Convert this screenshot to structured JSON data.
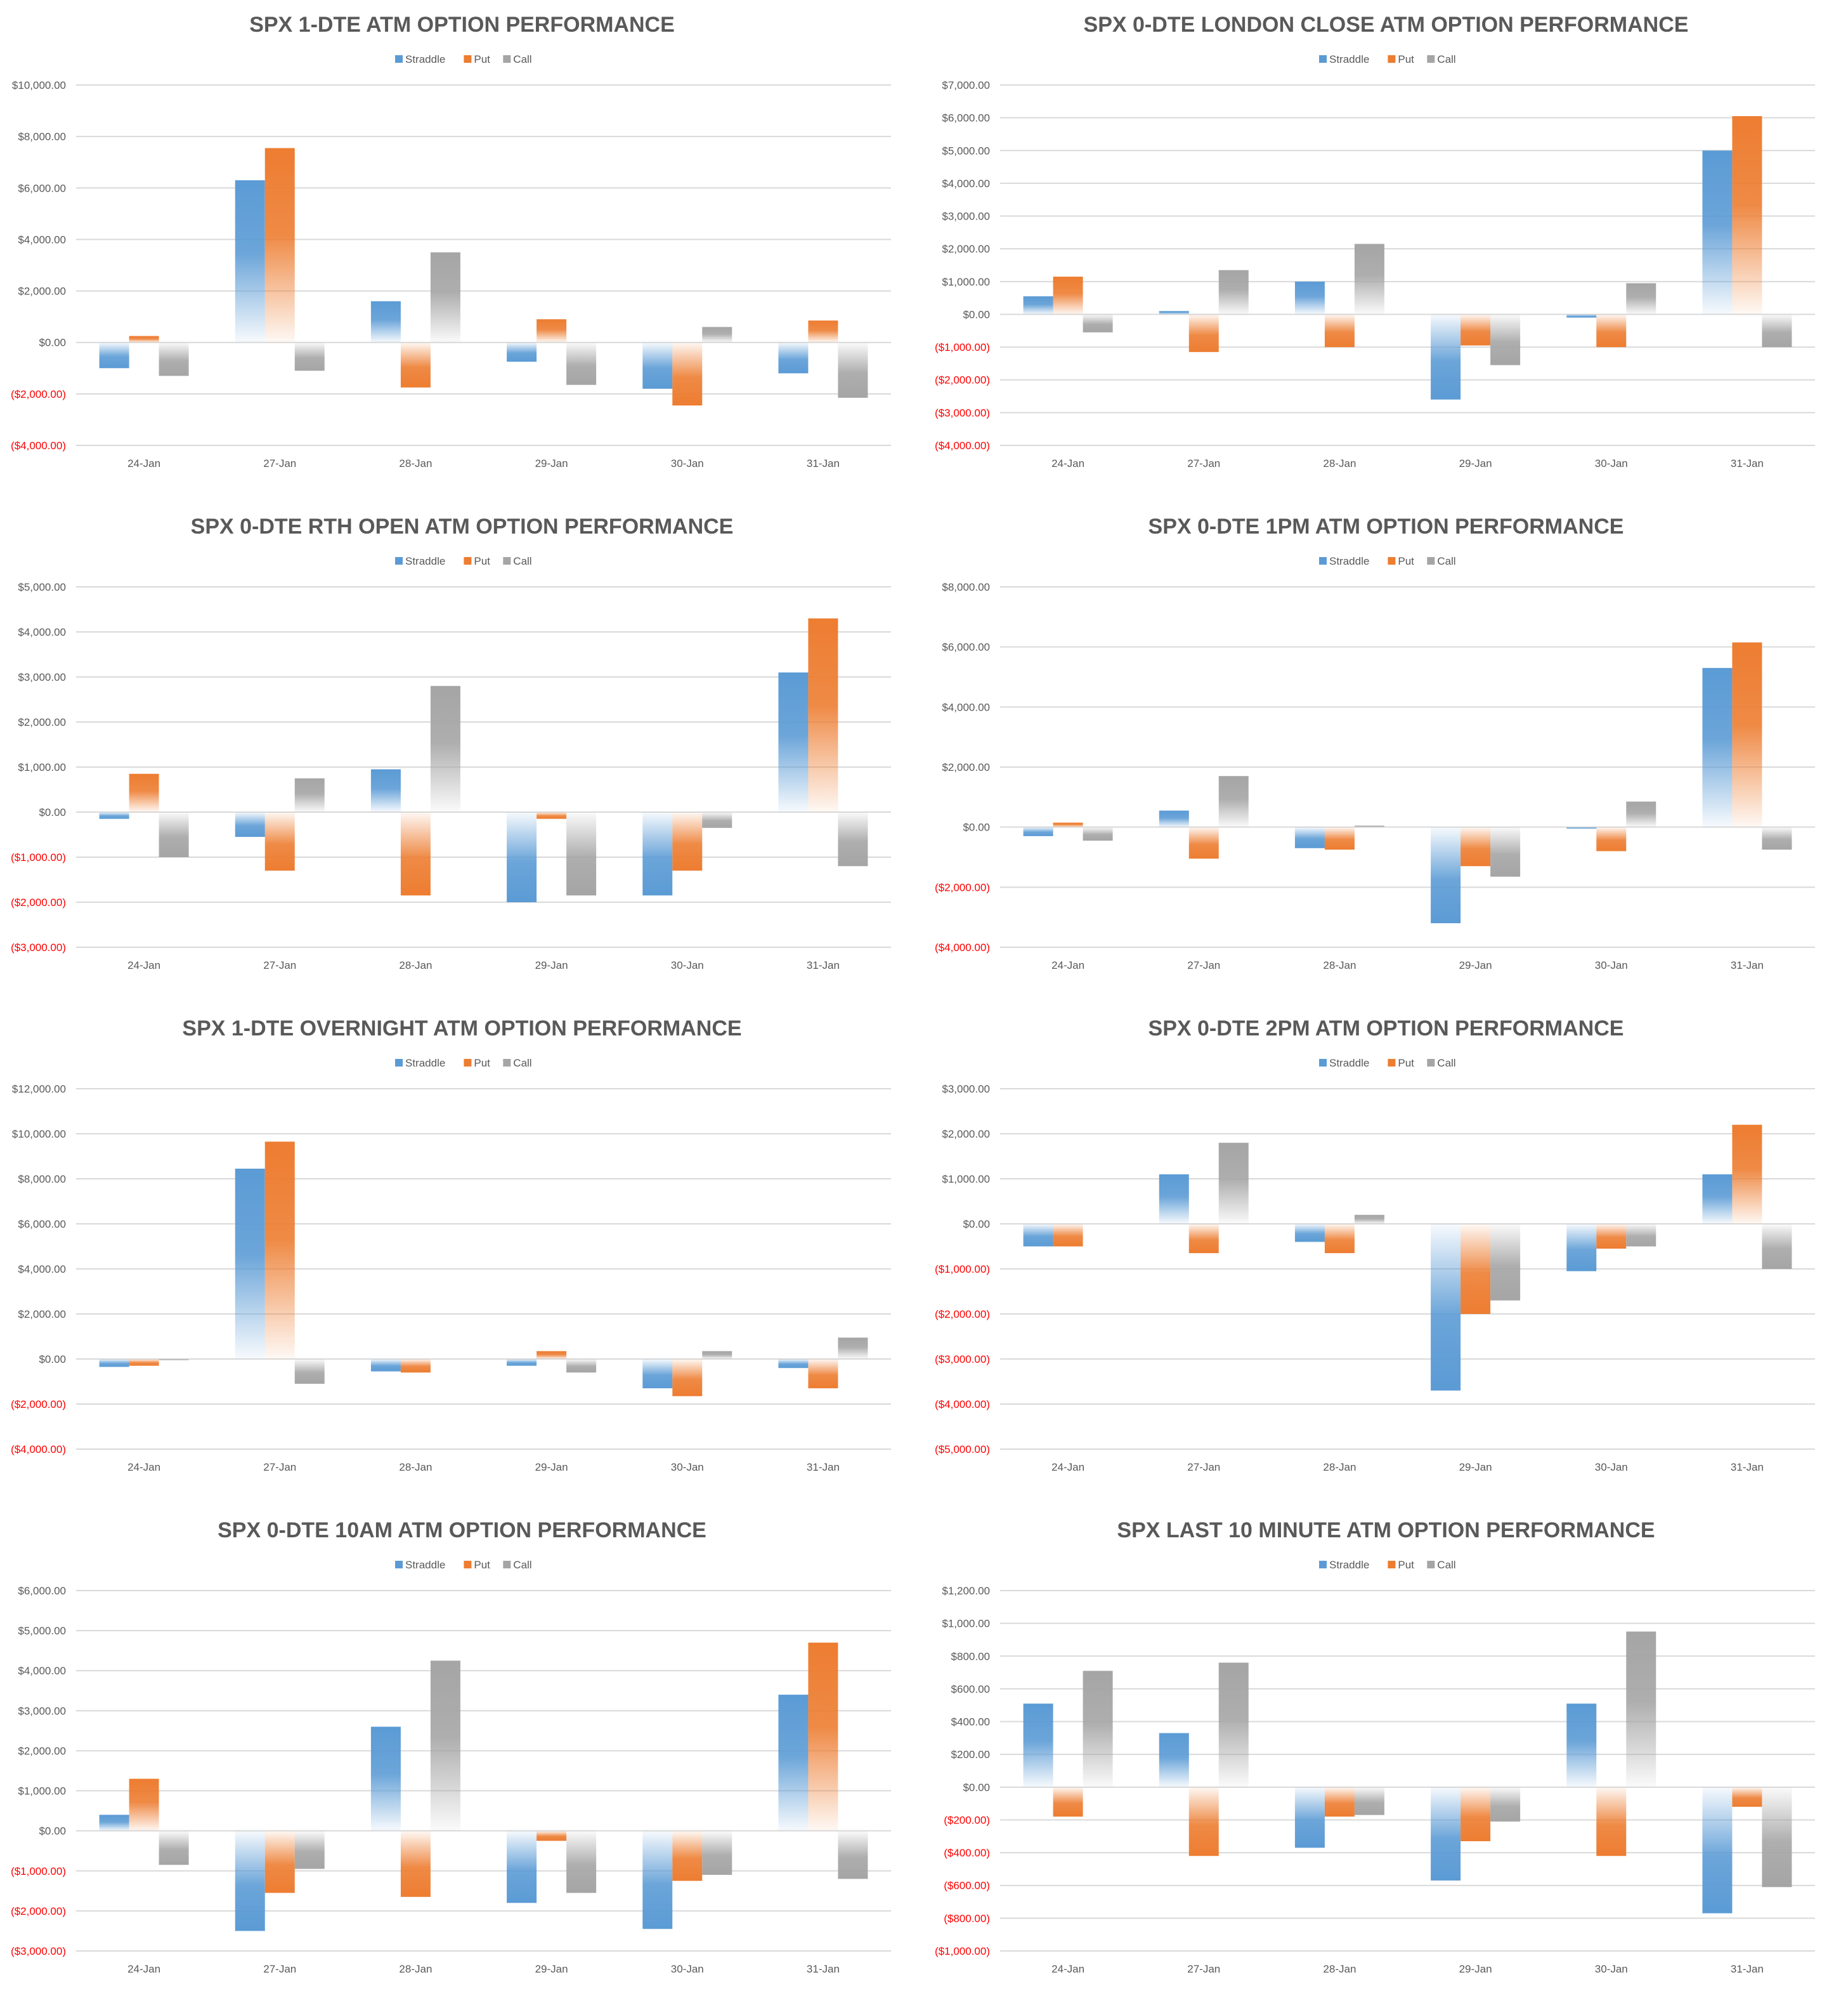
{
  "colors": {
    "straddle": "#5b9bd5",
    "put": "#ed7d31",
    "call": "#a5a5a5",
    "grid": "#d9d9d9",
    "negative_tick": "#ff0000",
    "text": "#595959"
  },
  "chart_data": [
    {
      "type": "bar",
      "title": "SPX 1-DTE ATM OPTION PERFORMANCE",
      "categories": [
        "24-Jan",
        "27-Jan",
        "28-Jan",
        "29-Jan",
        "30-Jan",
        "31-Jan"
      ],
      "ylim": [
        -4000,
        10000
      ],
      "yticks": [
        10000,
        8000,
        6000,
        4000,
        2000,
        0,
        -2000,
        -4000
      ],
      "ytick_labels": [
        "$10,000.00",
        "$8,000.00",
        "$6,000.00",
        "$4,000.00",
        "$2,000.00",
        "$0.00",
        "($2,000.00)",
        "($4,000.00)"
      ],
      "legend": "top-center",
      "series": [
        {
          "name": "Straddle",
          "values": [
            -1000,
            6300,
            1600,
            -750,
            -1800,
            -1200
          ]
        },
        {
          "name": "Put",
          "values": [
            250,
            7550,
            -1750,
            900,
            -2450,
            850
          ]
        },
        {
          "name": "Call",
          "values": [
            -1300,
            -1100,
            3500,
            -1650,
            600,
            -2150
          ]
        }
      ]
    },
    {
      "type": "bar",
      "title": "SPX 0-DTE  LONDON CLOSE ATM OPTION PERFORMANCE",
      "categories": [
        "24-Jan",
        "27-Jan",
        "28-Jan",
        "29-Jan",
        "30-Jan",
        "31-Jan"
      ],
      "ylim": [
        -4000,
        7000
      ],
      "yticks": [
        7000,
        6000,
        5000,
        4000,
        3000,
        2000,
        1000,
        0,
        -1000,
        -2000,
        -3000,
        -4000
      ],
      "ytick_labels": [
        "$7,000.00",
        "$6,000.00",
        "$5,000.00",
        "$4,000.00",
        "$3,000.00",
        "$2,000.00",
        "$1,000.00",
        "$0.00",
        "($1,000.00)",
        "($2,000.00)",
        "($3,000.00)",
        "($4,000.00)"
      ],
      "legend": "top-center",
      "series": [
        {
          "name": "Straddle",
          "values": [
            550,
            100,
            1000,
            -2600,
            -100,
            5000
          ]
        },
        {
          "name": "Put",
          "values": [
            1150,
            -1150,
            -1000,
            -950,
            -1000,
            6050
          ]
        },
        {
          "name": "Call",
          "values": [
            -550,
            1350,
            2150,
            -1550,
            950,
            -1000
          ]
        }
      ]
    },
    {
      "type": "bar",
      "title": "SPX 0-DTE RTH OPEN ATM OPTION PERFORMANCE",
      "categories": [
        "24-Jan",
        "27-Jan",
        "28-Jan",
        "29-Jan",
        "30-Jan",
        "31-Jan"
      ],
      "ylim": [
        -3000,
        5000
      ],
      "yticks": [
        5000,
        4000,
        3000,
        2000,
        1000,
        0,
        -1000,
        -2000,
        -3000
      ],
      "ytick_labels": [
        "$5,000.00",
        "$4,000.00",
        "$3,000.00",
        "$2,000.00",
        "$1,000.00",
        "$0.00",
        "($1,000.00)",
        "($2,000.00)",
        "($3,000.00)"
      ],
      "legend": "top-center",
      "series": [
        {
          "name": "Straddle",
          "values": [
            -150,
            -550,
            950,
            -2000,
            -1850,
            3100
          ]
        },
        {
          "name": "Put",
          "values": [
            850,
            -1300,
            -1850,
            -150,
            -1300,
            4300
          ]
        },
        {
          "name": "Call",
          "values": [
            -1000,
            750,
            2800,
            -1850,
            -350,
            -1200
          ]
        }
      ]
    },
    {
      "type": "bar",
      "title": "SPX 0-DTE 1PM ATM OPTION PERFORMANCE",
      "categories": [
        "24-Jan",
        "27-Jan",
        "28-Jan",
        "29-Jan",
        "30-Jan",
        "31-Jan"
      ],
      "ylim": [
        -4000,
        8000
      ],
      "yticks": [
        8000,
        6000,
        4000,
        2000,
        0,
        -2000,
        -4000
      ],
      "ytick_labels": [
        "$8,000.00",
        "$6,000.00",
        "$4,000.00",
        "$2,000.00",
        "$0.00",
        "($2,000.00)",
        "($4,000.00)"
      ],
      "legend": "top-center",
      "series": [
        {
          "name": "Straddle",
          "values": [
            -300,
            550,
            -700,
            -3200,
            -50,
            5300
          ]
        },
        {
          "name": "Put",
          "values": [
            150,
            -1050,
            -750,
            -1300,
            -800,
            6150
          ]
        },
        {
          "name": "Call",
          "values": [
            -450,
            1700,
            50,
            -1650,
            850,
            -750
          ]
        }
      ]
    },
    {
      "type": "bar",
      "title": "SPX 1-DTE OVERNIGHT ATM OPTION PERFORMANCE",
      "categories": [
        "24-Jan",
        "27-Jan",
        "28-Jan",
        "29-Jan",
        "30-Jan",
        "31-Jan"
      ],
      "ylim": [
        -4000,
        12000
      ],
      "yticks": [
        12000,
        10000,
        8000,
        6000,
        4000,
        2000,
        0,
        -2000,
        -4000
      ],
      "ytick_labels": [
        "$12,000.00",
        "$10,000.00",
        "$8,000.00",
        "$6,000.00",
        "$4,000.00",
        "$2,000.00",
        "$0.00",
        "($2,000.00)",
        "($4,000.00)"
      ],
      "legend": "top-center",
      "series": [
        {
          "name": "Straddle",
          "values": [
            -350,
            8450,
            -550,
            -300,
            -1300,
            -400
          ]
        },
        {
          "name": "Put",
          "values": [
            -300,
            9650,
            -600,
            350,
            -1650,
            -1300
          ]
        },
        {
          "name": "Call",
          "values": [
            -50,
            -1100,
            0,
            -600,
            350,
            950
          ]
        }
      ]
    },
    {
      "type": "bar",
      "title": "SPX 0-DTE 2PM ATM OPTION PERFORMANCE",
      "categories": [
        "24-Jan",
        "27-Jan",
        "28-Jan",
        "29-Jan",
        "30-Jan",
        "31-Jan"
      ],
      "ylim": [
        -5000,
        3000
      ],
      "yticks": [
        3000,
        2000,
        1000,
        0,
        -1000,
        -2000,
        -3000,
        -4000,
        -5000
      ],
      "ytick_labels": [
        "$3,000.00",
        "$2,000.00",
        "$1,000.00",
        "$0.00",
        "($1,000.00)",
        "($2,000.00)",
        "($3,000.00)",
        "($4,000.00)",
        "($5,000.00)"
      ],
      "legend": "top-center",
      "series": [
        {
          "name": "Straddle",
          "values": [
            -500,
            1100,
            -400,
            -3700,
            -1050,
            1100
          ]
        },
        {
          "name": "Put",
          "values": [
            -500,
            -650,
            -650,
            -2000,
            -550,
            2200
          ]
        },
        {
          "name": "Call",
          "values": [
            0,
            1800,
            200,
            -1700,
            -500,
            -1000
          ]
        }
      ]
    },
    {
      "type": "bar",
      "title": "SPX 0-DTE 10AM ATM OPTION PERFORMANCE",
      "categories": [
        "24-Jan",
        "27-Jan",
        "28-Jan",
        "29-Jan",
        "30-Jan",
        "31-Jan"
      ],
      "ylim": [
        -3000,
        6000
      ],
      "yticks": [
        6000,
        5000,
        4000,
        3000,
        2000,
        1000,
        0,
        -1000,
        -2000,
        -3000
      ],
      "ytick_labels": [
        "$6,000.00",
        "$5,000.00",
        "$4,000.00",
        "$3,000.00",
        "$2,000.00",
        "$1,000.00",
        "$0.00",
        "($1,000.00)",
        "($2,000.00)",
        "($3,000.00)"
      ],
      "legend": "top-center",
      "series": [
        {
          "name": "Straddle",
          "values": [
            400,
            -2500,
            2600,
            -1800,
            -2450,
            3400
          ]
        },
        {
          "name": "Put",
          "values": [
            1300,
            -1550,
            -1650,
            -250,
            -1250,
            4700
          ]
        },
        {
          "name": "Call",
          "values": [
            -850,
            -950,
            4250,
            -1550,
            -1100,
            -1200
          ]
        }
      ]
    },
    {
      "type": "bar",
      "title": "SPX LAST 10 MINUTE ATM OPTION PERFORMANCE",
      "categories": [
        "24-Jan",
        "27-Jan",
        "28-Jan",
        "29-Jan",
        "30-Jan",
        "31-Jan"
      ],
      "ylim": [
        -1000,
        1200
      ],
      "yticks": [
        1200,
        1000,
        800,
        600,
        400,
        200,
        0,
        -200,
        -400,
        -600,
        -800,
        -1000
      ],
      "ytick_labels": [
        "$1,200.00",
        "$1,000.00",
        "$800.00",
        "$600.00",
        "$400.00",
        "$200.00",
        "$0.00",
        "($200.00)",
        "($400.00)",
        "($600.00)",
        "($800.00)",
        "($1,000.00)"
      ],
      "legend": "top-center",
      "series": [
        {
          "name": "Straddle",
          "values": [
            510,
            330,
            -370,
            -570,
            510,
            -770
          ]
        },
        {
          "name": "Put",
          "values": [
            -180,
            -420,
            -180,
            -330,
            -420,
            -120
          ]
        },
        {
          "name": "Call",
          "values": [
            710,
            760,
            -170,
            -210,
            950,
            -610
          ]
        }
      ]
    }
  ]
}
